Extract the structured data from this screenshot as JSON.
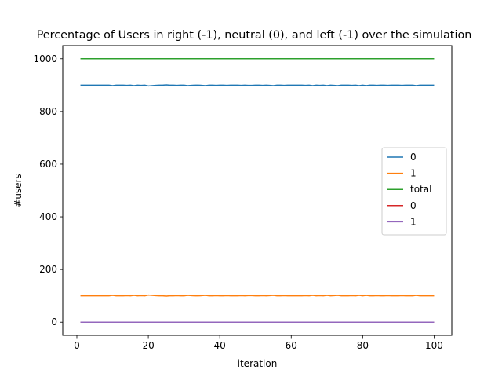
{
  "chart_data": {
    "type": "line",
    "title": "Percentage of Users in right (-1), neutral (0), and left (-1) over the simulation",
    "xlabel": "iteration",
    "ylabel": "#users",
    "xlim": [
      -3.95,
      104.95
    ],
    "ylim": [
      -50,
      1050
    ],
    "xticks": [
      0,
      20,
      40,
      60,
      80,
      100
    ],
    "yticks": [
      0,
      200,
      400,
      600,
      800,
      1000
    ],
    "grid": false,
    "legend_position": "center-right",
    "x": [
      1,
      2,
      3,
      4,
      5,
      6,
      7,
      8,
      9,
      10,
      11,
      12,
      13,
      14,
      15,
      16,
      17,
      18,
      19,
      20,
      21,
      22,
      23,
      24,
      25,
      26,
      27,
      28,
      29,
      30,
      31,
      32,
      33,
      34,
      35,
      36,
      37,
      38,
      39,
      40,
      41,
      42,
      43,
      44,
      45,
      46,
      47,
      48,
      49,
      50,
      51,
      52,
      53,
      54,
      55,
      56,
      57,
      58,
      59,
      60,
      61,
      62,
      63,
      64,
      65,
      66,
      67,
      68,
      69,
      70,
      71,
      72,
      73,
      74,
      75,
      76,
      77,
      78,
      79,
      80,
      81,
      82,
      83,
      84,
      85,
      86,
      87,
      88,
      89,
      90,
      91,
      92,
      93,
      94,
      95,
      96,
      97,
      98,
      99,
      100
    ],
    "series": [
      {
        "name": "0",
        "color": "#1f77b4",
        "values": [
          900,
          900,
          900,
          900,
          900,
          900,
          900,
          900,
          900,
          898,
          900,
          900,
          900,
          899,
          900,
          898,
          900,
          899,
          900,
          897,
          898,
          899,
          900,
          900,
          901,
          900,
          900,
          899,
          900,
          900,
          898,
          899,
          900,
          900,
          899,
          898,
          900,
          900,
          899,
          900,
          900,
          899,
          900,
          900,
          900,
          899,
          900,
          899,
          899,
          900,
          900,
          899,
          900,
          899,
          898,
          900,
          900,
          899,
          900,
          900,
          900,
          900,
          900,
          899,
          900,
          898,
          900,
          899,
          900,
          898,
          900,
          899,
          898,
          900,
          900,
          900,
          899,
          900,
          898,
          900,
          898,
          900,
          900,
          899,
          900,
          900,
          899,
          900,
          900,
          900,
          899,
          900,
          900,
          900,
          898,
          900,
          900,
          900,
          900,
          900
        ]
      },
      {
        "name": "1",
        "color": "#ff7f0e",
        "values": [
          100,
          100,
          100,
          100,
          100,
          100,
          100,
          100,
          100,
          102,
          100,
          100,
          100,
          101,
          100,
          102,
          100,
          101,
          100,
          103,
          102,
          101,
          100,
          100,
          99,
          100,
          100,
          101,
          100,
          100,
          102,
          101,
          100,
          100,
          101,
          102,
          100,
          100,
          101,
          100,
          100,
          101,
          100,
          100,
          100,
          101,
          100,
          101,
          101,
          100,
          100,
          101,
          100,
          101,
          102,
          100,
          100,
          101,
          100,
          100,
          100,
          100,
          100,
          101,
          100,
          102,
          100,
          101,
          100,
          102,
          100,
          101,
          102,
          100,
          100,
          100,
          101,
          100,
          102,
          100,
          102,
          100,
          100,
          101,
          100,
          100,
          101,
          100,
          100,
          100,
          101,
          100,
          100,
          100,
          102,
          100,
          100,
          100,
          100,
          100
        ]
      },
      {
        "name": "total",
        "color": "#2ca02c",
        "values": [
          1000,
          1000,
          1000,
          1000,
          1000,
          1000,
          1000,
          1000,
          1000,
          1000,
          1000,
          1000,
          1000,
          1000,
          1000,
          1000,
          1000,
          1000,
          1000,
          1000,
          1000,
          1000,
          1000,
          1000,
          1000,
          1000,
          1000,
          1000,
          1000,
          1000,
          1000,
          1000,
          1000,
          1000,
          1000,
          1000,
          1000,
          1000,
          1000,
          1000,
          1000,
          1000,
          1000,
          1000,
          1000,
          1000,
          1000,
          1000,
          1000,
          1000,
          1000,
          1000,
          1000,
          1000,
          1000,
          1000,
          1000,
          1000,
          1000,
          1000,
          1000,
          1000,
          1000,
          1000,
          1000,
          1000,
          1000,
          1000,
          1000,
          1000,
          1000,
          1000,
          1000,
          1000,
          1000,
          1000,
          1000,
          1000,
          1000,
          1000,
          1000,
          1000,
          1000,
          1000,
          1000,
          1000,
          1000,
          1000,
          1000,
          1000,
          1000,
          1000,
          1000,
          1000,
          1000,
          1000,
          1000,
          1000,
          1000,
          1000
        ]
      },
      {
        "name": "0",
        "color": "#d62728",
        "values": [
          0,
          0,
          0,
          0,
          0,
          0,
          0,
          0,
          0,
          0,
          0,
          0,
          0,
          0,
          0,
          0,
          0,
          0,
          0,
          0,
          0,
          0,
          0,
          0,
          0,
          0,
          0,
          0,
          0,
          0,
          0,
          0,
          0,
          0,
          0,
          0,
          0,
          0,
          0,
          0,
          0,
          0,
          0,
          0,
          0,
          0,
          0,
          0,
          0,
          0,
          0,
          0,
          0,
          0,
          0,
          0,
          0,
          0,
          0,
          0,
          0,
          0,
          0,
          0,
          0,
          0,
          0,
          0,
          0,
          0,
          0,
          0,
          0,
          0,
          0,
          0,
          0,
          0,
          0,
          0,
          0,
          0,
          0,
          0,
          0,
          0,
          0,
          0,
          0,
          0,
          0,
          0,
          0,
          0,
          0,
          0,
          0,
          0,
          0,
          0
        ]
      },
      {
        "name": "1",
        "color": "#9467bd",
        "values": [
          0,
          0,
          0,
          0,
          0,
          0,
          0,
          0,
          0,
          0,
          0,
          0,
          0,
          0,
          0,
          0,
          0,
          0,
          0,
          0,
          0,
          0,
          0,
          0,
          0,
          0,
          0,
          0,
          0,
          0,
          0,
          0,
          0,
          0,
          0,
          0,
          0,
          0,
          0,
          0,
          0,
          0,
          0,
          0,
          0,
          0,
          0,
          0,
          0,
          0,
          0,
          0,
          0,
          0,
          0,
          0,
          0,
          0,
          0,
          0,
          0,
          0,
          0,
          0,
          0,
          0,
          0,
          0,
          0,
          0,
          0,
          0,
          0,
          0,
          0,
          0,
          0,
          0,
          0,
          0,
          0,
          0,
          0,
          0,
          0,
          0,
          0,
          0,
          0,
          0,
          0,
          0,
          0,
          0,
          0,
          0,
          0,
          0,
          0,
          0
        ]
      }
    ]
  }
}
